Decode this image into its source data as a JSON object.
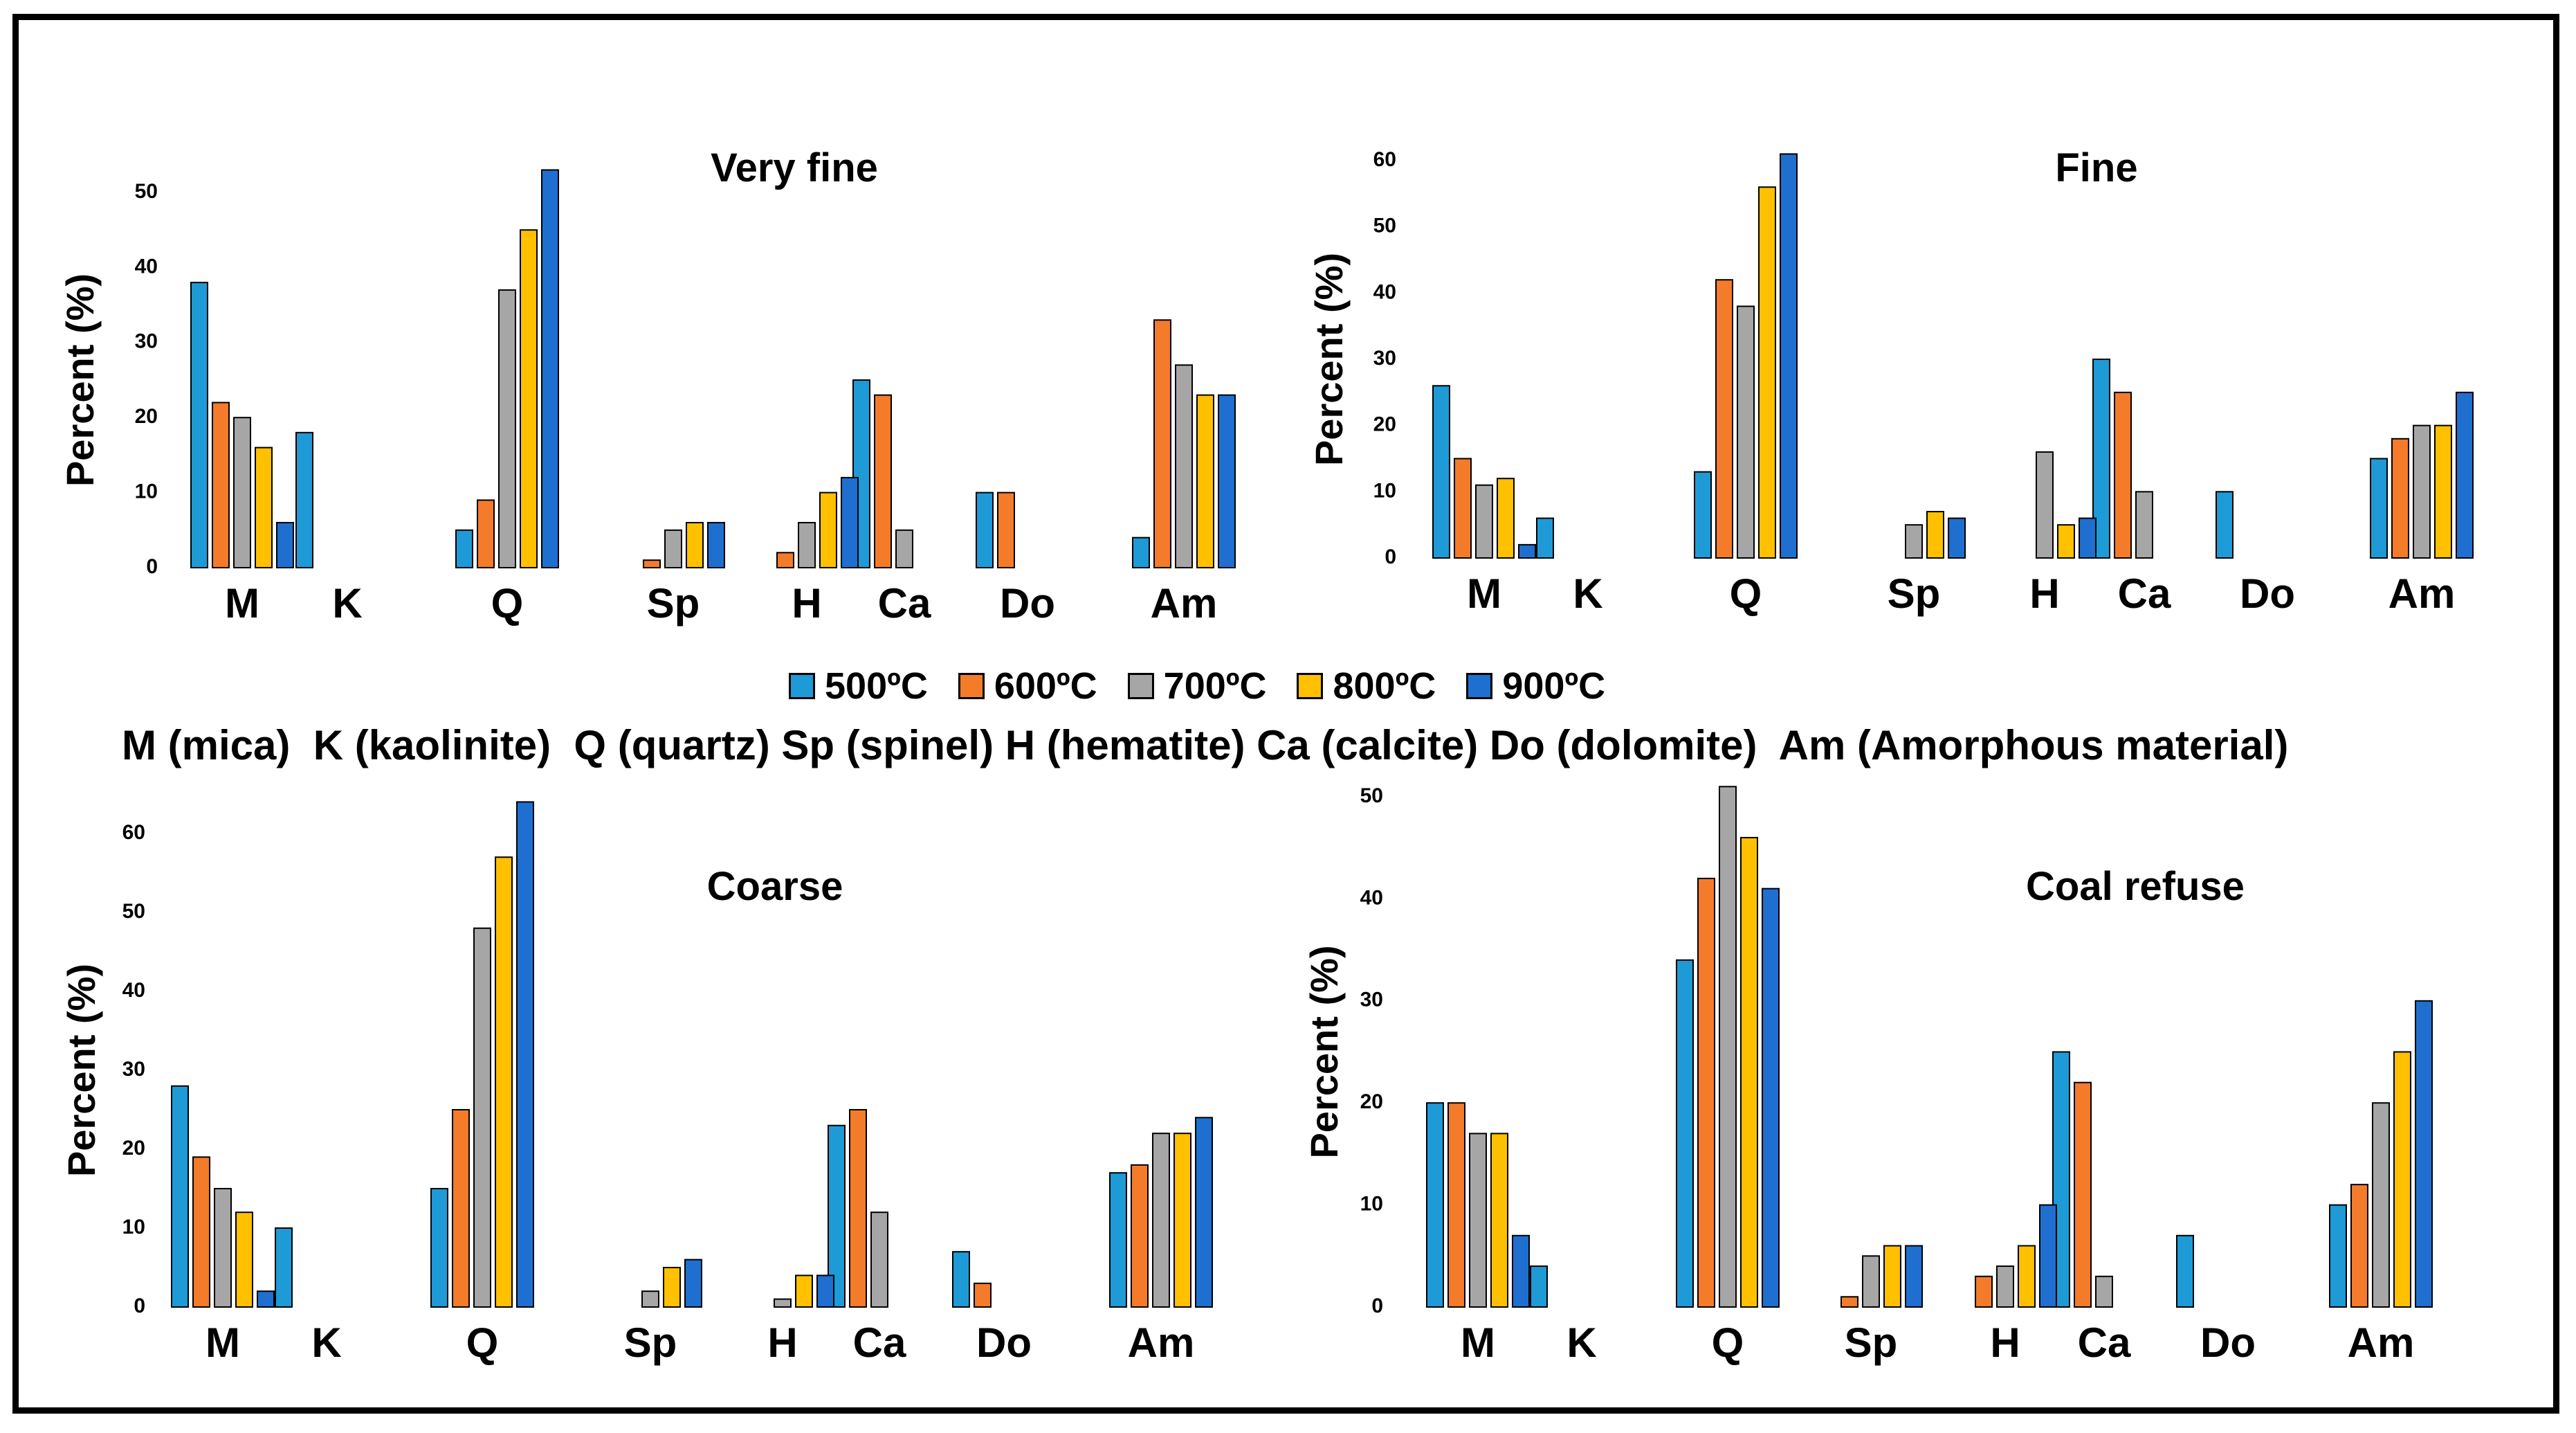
{
  "colors": {
    "500": "#1e9ad6",
    "600": "#f47b2a",
    "700": "#a6a6a6",
    "800": "#ffc000",
    "900": "#1f6fd0"
  },
  "legend": [
    {
      "label": "500ºC",
      "color": "#1e9ad6"
    },
    {
      "label": "600ºC",
      "color": "#f47b2a"
    },
    {
      "label": "700ºC",
      "color": "#a6a6a6"
    },
    {
      "label": "800ºC",
      "color": "#ffc000"
    },
    {
      "label": "900ºC",
      "color": "#1f6fd0"
    }
  ],
  "abbreviations": "M (mica)  K (kaolinite)  Q (quartz) Sp (spinel) H (hematite) Ca (calcite) Do (dolomite)  Am (Amorphous material)",
  "chart_data": [
    {
      "type": "bar",
      "title": "Very fine",
      "ylabel": "Percent (%)",
      "ylim": [
        0,
        50
      ],
      "yticks": [
        0,
        10,
        20,
        30,
        40,
        50
      ],
      "categories": [
        "M",
        "K",
        "Q",
        "Sp",
        "H",
        "Ca",
        "Do",
        "Am"
      ],
      "series": [
        {
          "name": "500ºC",
          "values": [
            38,
            18,
            5,
            0,
            0,
            25,
            10,
            4
          ]
        },
        {
          "name": "600ºC",
          "values": [
            22,
            0,
            9,
            1,
            2,
            23,
            10,
            33
          ]
        },
        {
          "name": "700ºC",
          "values": [
            20,
            0,
            37,
            5,
            6,
            5,
            0,
            27
          ]
        },
        {
          "name": "800ºC",
          "values": [
            16,
            0,
            45,
            6,
            10,
            0,
            0,
            23
          ]
        },
        {
          "name": "900ºC",
          "values": [
            6,
            0,
            53,
            6,
            12,
            0,
            0,
            23
          ]
        }
      ]
    },
    {
      "type": "bar",
      "title": "Fine",
      "ylabel": "Percent (%)",
      "ylim": [
        0,
        60
      ],
      "yticks": [
        0,
        10,
        20,
        30,
        40,
        50,
        60
      ],
      "categories": [
        "M",
        "K",
        "Q",
        "Sp",
        "H",
        "Ca",
        "Do",
        "Am"
      ],
      "series": [
        {
          "name": "500ºC",
          "values": [
            26,
            6,
            13,
            0,
            0,
            30,
            10,
            15
          ]
        },
        {
          "name": "600ºC",
          "values": [
            15,
            0,
            42,
            0,
            0,
            25,
            0,
            18
          ]
        },
        {
          "name": "700ºC",
          "values": [
            11,
            0,
            38,
            5,
            16,
            10,
            0,
            20
          ]
        },
        {
          "name": "800ºC",
          "values": [
            12,
            0,
            56,
            7,
            5,
            0,
            0,
            20
          ]
        },
        {
          "name": "900ºC",
          "values": [
            2,
            0,
            61,
            6,
            6,
            0,
            0,
            25
          ]
        }
      ]
    },
    {
      "type": "bar",
      "title": "Coarse",
      "ylabel": "Percent (%)",
      "ylim": [
        0,
        60
      ],
      "yticks": [
        0,
        10,
        20,
        30,
        40,
        50,
        60
      ],
      "categories": [
        "M",
        "K",
        "Q",
        "Sp",
        "H",
        "Ca",
        "Do",
        "Am"
      ],
      "series": [
        {
          "name": "500ºC",
          "values": [
            28,
            10,
            15,
            0,
            0,
            23,
            7,
            17
          ]
        },
        {
          "name": "600ºC",
          "values": [
            19,
            0,
            25,
            0,
            0,
            25,
            3,
            18
          ]
        },
        {
          "name": "700ºC",
          "values": [
            15,
            0,
            48,
            2,
            1,
            12,
            0,
            22
          ]
        },
        {
          "name": "800ºC",
          "values": [
            12,
            0,
            57,
            5,
            4,
            0,
            0,
            22
          ]
        },
        {
          "name": "900ºC",
          "values": [
            2,
            0,
            64,
            6,
            4,
            0,
            0,
            24
          ]
        }
      ]
    },
    {
      "type": "bar",
      "title": "Coal refuse",
      "ylabel": "Percent (%)",
      "ylim": [
        0,
        50
      ],
      "yticks": [
        0,
        10,
        20,
        30,
        40,
        50
      ],
      "categories": [
        "M",
        "K",
        "Q",
        "Sp",
        "H",
        "Ca",
        "Do",
        "Am"
      ],
      "series": [
        {
          "name": "500ºC",
          "values": [
            20,
            4,
            34,
            0,
            0,
            25,
            7,
            10
          ]
        },
        {
          "name": "600ºC",
          "values": [
            20,
            0,
            42,
            1,
            3,
            22,
            0,
            12
          ]
        },
        {
          "name": "700ºC",
          "values": [
            17,
            0,
            51,
            5,
            4,
            3,
            0,
            20
          ]
        },
        {
          "name": "800ºC",
          "values": [
            17,
            0,
            46,
            6,
            6,
            0,
            0,
            25
          ]
        },
        {
          "name": "900ºC",
          "values": [
            7,
            0,
            41,
            6,
            10,
            0,
            0,
            30
          ]
        }
      ]
    }
  ]
}
